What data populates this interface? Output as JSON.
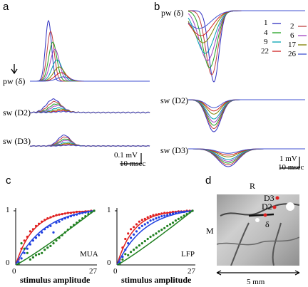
{
  "panels": {
    "a": {
      "label": "a",
      "traces": [
        "pw (δ)",
        "sw (D2)",
        "sw (D3)"
      ],
      "scale_amp": "0.1 mV",
      "scale_time": "10 msec"
    },
    "b": {
      "label": "b",
      "traces": [
        "pw (δ)",
        "sw (D2)",
        "sw (D3)"
      ],
      "legend": [
        "1",
        "2",
        "4",
        "6",
        "9",
        "17",
        "22",
        "26"
      ],
      "legend_colors": [
        "#3030c0",
        "#c04040",
        "#20a020",
        "#a040c0",
        "#00a0b0",
        "#808000",
        "#d02020",
        "#4050d0"
      ],
      "scale_amp": "1 mV",
      "scale_time": "10 msec"
    },
    "c": {
      "label": "c",
      "subplots": [
        {
          "name": "MUA",
          "y_ticks": [
            "1",
            "0"
          ],
          "x_ticks": [
            "0",
            "27"
          ],
          "xlabel": "stimulus amplitude"
        },
        {
          "name": "LFP",
          "y_ticks": [
            "1",
            "0"
          ],
          "x_ticks": [
            "0",
            "27"
          ],
          "xlabel": "stimulus amplitude"
        }
      ],
      "series_colors": {
        "red": "#e02020",
        "blue": "#2040e0",
        "green": "#208020"
      }
    },
    "d": {
      "label": "d",
      "orientation_R": "R",
      "orientation_M": "M",
      "whiskers": [
        "D3",
        "D2",
        "δ"
      ],
      "scalebar": "5 mm"
    }
  },
  "chart_data": [
    {
      "type": "scatter",
      "title": "MUA",
      "xlabel": "stimulus amplitude",
      "xlim": [
        0,
        27
      ],
      "ylim": [
        0,
        1
      ],
      "series": [
        {
          "x": [
            1,
            2,
            3,
            4,
            5,
            6,
            7,
            8,
            9,
            10,
            11,
            12,
            13,
            14,
            15,
            16,
            17,
            18,
            19,
            20,
            21,
            22,
            23,
            24,
            25,
            26,
            27
          ],
          "values": [
            0.1,
            0.3,
            0.45,
            0.52,
            0.62,
            0.66,
            0.72,
            0.76,
            0.8,
            0.83,
            0.86,
            0.88,
            0.9,
            0.92,
            0.93,
            0.94,
            0.95,
            0.96,
            0.96,
            0.97,
            0.98,
            0.98,
            0.98,
            0.99,
            0.99,
            1.0,
            1.0
          ]
        },
        {
          "x": [
            1,
            2,
            3,
            4,
            5,
            6,
            7,
            8,
            9,
            10,
            11,
            12,
            13,
            14,
            15,
            16,
            17,
            18,
            19,
            20,
            21,
            22,
            23,
            24,
            25,
            26,
            27
          ],
          "values": [
            0.05,
            0.12,
            0.22,
            0.3,
            0.38,
            0.45,
            0.5,
            0.55,
            0.6,
            0.66,
            0.7,
            0.72,
            0.6,
            0.78,
            0.8,
            0.84,
            0.86,
            0.88,
            0.9,
            0.92,
            0.93,
            0.95,
            0.96,
            0.97,
            0.98,
            0.99,
            1.0
          ]
        },
        {
          "x": [
            1,
            2,
            3,
            4,
            5,
            6,
            7,
            8,
            9,
            10,
            11,
            12,
            13,
            14,
            15,
            16,
            17,
            18,
            19,
            20,
            21,
            22,
            23,
            24,
            25,
            26,
            27
          ],
          "values": [
            0.02,
            0.4,
            0.3,
            0.22,
            0.1,
            0.14,
            0.18,
            0.2,
            0.22,
            0.28,
            0.32,
            0.35,
            0.4,
            0.45,
            0.5,
            0.55,
            0.6,
            0.65,
            0.7,
            0.74,
            0.78,
            0.82,
            0.86,
            0.9,
            0.94,
            0.97,
            1.0
          ]
        }
      ]
    },
    {
      "type": "scatter",
      "title": "LFP",
      "xlabel": "stimulus amplitude",
      "xlim": [
        0,
        27
      ],
      "ylim": [
        0,
        1
      ],
      "series": [
        {
          "x": [
            1,
            2,
            3,
            4,
            5,
            6,
            7,
            8,
            9,
            10,
            11,
            12,
            13,
            14,
            15,
            16,
            17,
            18,
            19,
            20,
            21,
            22,
            23,
            24,
            25,
            26,
            27
          ],
          "values": [
            0.1,
            0.32,
            0.48,
            0.58,
            0.66,
            0.7,
            0.75,
            0.8,
            0.83,
            0.85,
            0.88,
            0.9,
            0.92,
            0.93,
            0.94,
            0.95,
            0.96,
            0.96,
            0.97,
            0.98,
            0.98,
            0.99,
            0.99,
            0.99,
            1.0,
            1.0,
            1.0
          ]
        },
        {
          "x": [
            1,
            2,
            3,
            4,
            5,
            6,
            7,
            8,
            9,
            10,
            11,
            12,
            13,
            14,
            15,
            16,
            17,
            18,
            19,
            20,
            21,
            22,
            23,
            24,
            25,
            26,
            27
          ],
          "values": [
            0.05,
            0.15,
            0.28,
            0.4,
            0.5,
            0.56,
            0.62,
            0.68,
            0.72,
            0.75,
            0.78,
            0.82,
            0.84,
            0.86,
            0.88,
            0.9,
            0.91,
            0.92,
            0.94,
            0.95,
            0.96,
            0.97,
            0.98,
            0.98,
            0.99,
            0.99,
            1.0
          ]
        },
        {
          "x": [
            1,
            2,
            3,
            4,
            5,
            6,
            7,
            8,
            9,
            10,
            11,
            12,
            13,
            14,
            15,
            16,
            17,
            18,
            19,
            20,
            21,
            22,
            23,
            24,
            25,
            26,
            27
          ],
          "values": [
            0.02,
            0.1,
            0.2,
            0.18,
            0.24,
            0.28,
            0.32,
            0.36,
            0.4,
            0.44,
            0.48,
            0.52,
            0.55,
            0.58,
            0.62,
            0.65,
            0.68,
            0.72,
            0.75,
            0.78,
            0.82,
            0.85,
            0.88,
            0.91,
            0.94,
            0.97,
            1.0
          ]
        }
      ]
    }
  ]
}
